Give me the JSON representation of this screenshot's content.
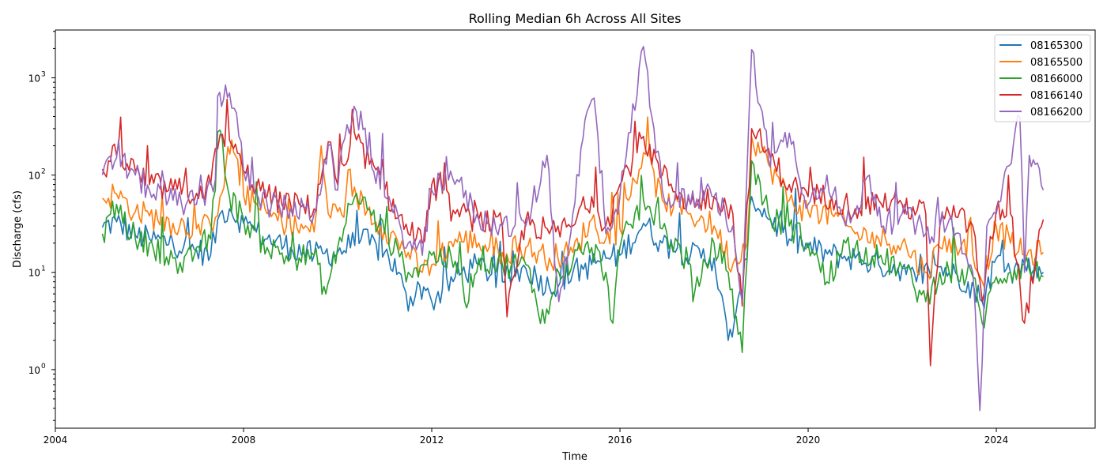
{
  "chart_data": {
    "type": "line",
    "title": "Rolling Median 6h Across All Sites",
    "xlabel": "Time",
    "ylabel": "Discharge (cfs)",
    "xscale": "time",
    "yscale": "log",
    "xlim": [
      2004.0,
      2026.1
    ],
    "ylim": [
      0.25,
      3100
    ],
    "xticks": [
      2004,
      2008,
      2012,
      2016,
      2020,
      2024
    ],
    "xtick_labels": [
      "2004",
      "2008",
      "2012",
      "2016",
      "2020",
      "2024"
    ],
    "yticks": [
      1,
      10,
      100,
      1000
    ],
    "ytick_labels": [
      [
        "10",
        "0"
      ],
      [
        "10",
        "1"
      ],
      [
        "10",
        "2"
      ],
      [
        "10",
        "3"
      ]
    ],
    "grid": false,
    "legend_position": "top-right",
    "series": [
      {
        "name": "08165300",
        "color": "#1f77b4",
        "points": [
          [
            2005.0,
            29
          ],
          [
            2005.3,
            33
          ],
          [
            2005.7,
            24
          ],
          [
            2006.0,
            22
          ],
          [
            2006.5,
            20
          ],
          [
            2007.0,
            17
          ],
          [
            2007.3,
            15
          ],
          [
            2007.5,
            40
          ],
          [
            2007.7,
            45
          ],
          [
            2008.0,
            32
          ],
          [
            2008.5,
            22
          ],
          [
            2009.0,
            18
          ],
          [
            2009.5,
            15
          ],
          [
            2010.0,
            16
          ],
          [
            2010.5,
            22
          ],
          [
            2011.0,
            16
          ],
          [
            2011.3,
            10
          ],
          [
            2011.5,
            4
          ],
          [
            2011.7,
            8
          ],
          [
            2012.0,
            5
          ],
          [
            2012.5,
            9
          ],
          [
            2013.0,
            12
          ],
          [
            2013.5,
            8
          ],
          [
            2014.0,
            11
          ],
          [
            2014.5,
            7
          ],
          [
            2015.0,
            10
          ],
          [
            2015.4,
            12
          ],
          [
            2015.7,
            14
          ],
          [
            2016.0,
            15
          ],
          [
            2016.5,
            32
          ],
          [
            2016.9,
            20
          ],
          [
            2017.5,
            15
          ],
          [
            2018.0,
            14
          ],
          [
            2018.3,
            2
          ],
          [
            2018.6,
            6
          ],
          [
            2018.8,
            60
          ],
          [
            2019.2,
            35
          ],
          [
            2019.6,
            22
          ],
          [
            2020.0,
            18
          ],
          [
            2020.5,
            15
          ],
          [
            2021.0,
            14
          ],
          [
            2021.5,
            12
          ],
          [
            2022.0,
            11
          ],
          [
            2022.3,
            8
          ],
          [
            2022.7,
            12
          ],
          [
            2023.0,
            10
          ],
          [
            2023.4,
            8
          ],
          [
            2023.7,
            5
          ],
          [
            2024.0,
            14
          ],
          [
            2024.3,
            10
          ],
          [
            2024.6,
            12
          ],
          [
            2025.0,
            10
          ]
        ]
      },
      {
        "name": "08165500",
        "color": "#ff7f0e",
        "points": [
          [
            2005.0,
            58
          ],
          [
            2005.3,
            64
          ],
          [
            2005.7,
            42
          ],
          [
            2006.0,
            38
          ],
          [
            2006.5,
            32
          ],
          [
            2007.0,
            28
          ],
          [
            2007.3,
            30
          ],
          [
            2007.5,
            60
          ],
          [
            2007.75,
            230
          ],
          [
            2008.0,
            62
          ],
          [
            2008.5,
            40
          ],
          [
            2009.0,
            30
          ],
          [
            2009.5,
            26
          ],
          [
            2009.65,
            200
          ],
          [
            2009.8,
            40
          ],
          [
            2010.0,
            42
          ],
          [
            2010.4,
            60
          ],
          [
            2011.0,
            28
          ],
          [
            2011.5,
            16
          ],
          [
            2011.8,
            10
          ],
          [
            2012.0,
            12
          ],
          [
            2012.5,
            22
          ],
          [
            2013.0,
            20
          ],
          [
            2013.5,
            16
          ],
          [
            2014.0,
            18
          ],
          [
            2014.5,
            14
          ],
          [
            2015.0,
            16
          ],
          [
            2015.4,
            35
          ],
          [
            2015.7,
            22
          ],
          [
            2016.0,
            28
          ],
          [
            2016.5,
            170
          ],
          [
            2016.9,
            55
          ],
          [
            2017.5,
            40
          ],
          [
            2018.0,
            30
          ],
          [
            2018.4,
            12
          ],
          [
            2018.7,
            20
          ],
          [
            2018.8,
            250
          ],
          [
            2019.2,
            120
          ],
          [
            2019.6,
            55
          ],
          [
            2020.0,
            42
          ],
          [
            2020.5,
            40
          ],
          [
            2021.0,
            25
          ],
          [
            2021.5,
            22
          ],
          [
            2022.0,
            20
          ],
          [
            2022.5,
            10
          ],
          [
            2022.8,
            18
          ],
          [
            2023.0,
            22
          ],
          [
            2023.5,
            15
          ],
          [
            2023.7,
            8
          ],
          [
            2024.0,
            30
          ],
          [
            2024.3,
            20
          ],
          [
            2024.6,
            15
          ],
          [
            2025.0,
            16
          ]
        ]
      },
      {
        "name": "08166000",
        "color": "#2ca02c",
        "points": [
          [
            2005.0,
            25
          ],
          [
            2005.3,
            50
          ],
          [
            2005.7,
            22
          ],
          [
            2006.0,
            20
          ],
          [
            2006.5,
            14
          ],
          [
            2006.7,
            10
          ],
          [
            2007.0,
            18
          ],
          [
            2007.3,
            22
          ],
          [
            2007.5,
            290
          ],
          [
            2007.7,
            60
          ],
          [
            2008.0,
            35
          ],
          [
            2008.5,
            18
          ],
          [
            2009.0,
            14
          ],
          [
            2009.5,
            15
          ],
          [
            2009.75,
            6
          ],
          [
            2010.0,
            18
          ],
          [
            2010.4,
            65
          ],
          [
            2011.0,
            25
          ],
          [
            2011.5,
            10
          ],
          [
            2011.8,
            12
          ],
          [
            2012.0,
            15
          ],
          [
            2012.5,
            13
          ],
          [
            2012.7,
            5
          ],
          [
            2013.0,
            14
          ],
          [
            2013.5,
            12
          ],
          [
            2014.0,
            12
          ],
          [
            2014.4,
            3
          ],
          [
            2014.7,
            10
          ],
          [
            2015.0,
            13
          ],
          [
            2015.4,
            18
          ],
          [
            2015.7,
            10
          ],
          [
            2015.85,
            3
          ],
          [
            2016.0,
            18
          ],
          [
            2016.5,
            55
          ],
          [
            2016.9,
            28
          ],
          [
            2017.5,
            12
          ],
          [
            2017.55,
            5
          ],
          [
            2018.0,
            20
          ],
          [
            2018.3,
            10
          ],
          [
            2018.6,
            1.5
          ],
          [
            2018.8,
            140
          ],
          [
            2019.2,
            35
          ],
          [
            2019.6,
            30
          ],
          [
            2020.0,
            20
          ],
          [
            2020.4,
            8
          ],
          [
            2020.8,
            20
          ],
          [
            2021.0,
            18
          ],
          [
            2021.5,
            14
          ],
          [
            2022.0,
            11
          ],
          [
            2022.5,
            5
          ],
          [
            2022.8,
            10
          ],
          [
            2023.0,
            10
          ],
          [
            2023.5,
            9
          ],
          [
            2023.7,
            3
          ],
          [
            2024.0,
            9
          ],
          [
            2024.3,
            10
          ],
          [
            2024.6,
            12
          ],
          [
            2025.0,
            9
          ]
        ]
      },
      {
        "name": "08166140",
        "color": "#d62728",
        "points": [
          [
            2005.0,
            115
          ],
          [
            2005.3,
            160
          ],
          [
            2005.7,
            110
          ],
          [
            2006.0,
            80
          ],
          [
            2006.5,
            70
          ],
          [
            2007.0,
            65
          ],
          [
            2007.3,
            80
          ],
          [
            2007.5,
            260
          ],
          [
            2007.7,
            230
          ],
          [
            2008.0,
            110
          ],
          [
            2008.5,
            60
          ],
          [
            2009.0,
            50
          ],
          [
            2009.5,
            45
          ],
          [
            2009.8,
            220
          ],
          [
            2010.0,
            80
          ],
          [
            2010.4,
            230
          ],
          [
            2011.0,
            70
          ],
          [
            2011.5,
            25
          ],
          [
            2011.8,
            20
          ],
          [
            2012.0,
            80
          ],
          [
            2012.5,
            40
          ],
          [
            2013.0,
            35
          ],
          [
            2013.5,
            30
          ],
          [
            2013.6,
            3.5
          ],
          [
            2014.0,
            35
          ],
          [
            2014.5,
            25
          ],
          [
            2015.0,
            30
          ],
          [
            2015.4,
            60
          ],
          [
            2015.7,
            30
          ],
          [
            2016.0,
            80
          ],
          [
            2016.5,
            250
          ],
          [
            2016.9,
            100
          ],
          [
            2017.5,
            50
          ],
          [
            2018.0,
            60
          ],
          [
            2018.4,
            40
          ],
          [
            2018.6,
            4.5
          ],
          [
            2018.8,
            300
          ],
          [
            2019.2,
            150
          ],
          [
            2019.6,
            80
          ],
          [
            2020.0,
            60
          ],
          [
            2020.5,
            60
          ],
          [
            2021.0,
            45
          ],
          [
            2021.5,
            55
          ],
          [
            2022.0,
            50
          ],
          [
            2022.5,
            40
          ],
          [
            2022.6,
            1.1
          ],
          [
            2022.8,
            30
          ],
          [
            2023.0,
            40
          ],
          [
            2023.5,
            30
          ],
          [
            2023.7,
            5
          ],
          [
            2024.0,
            45
          ],
          [
            2024.3,
            40
          ],
          [
            2024.6,
            3
          ],
          [
            2025.0,
            35
          ]
        ]
      },
      {
        "name": "08166200",
        "color": "#9467bd",
        "points": [
          [
            2005.0,
            100
          ],
          [
            2005.3,
            150
          ],
          [
            2005.7,
            100
          ],
          [
            2006.0,
            70
          ],
          [
            2006.5,
            55
          ],
          [
            2007.0,
            50
          ],
          [
            2007.4,
            90
          ],
          [
            2007.45,
            650
          ],
          [
            2007.7,
            700
          ],
          [
            2007.9,
            250
          ],
          [
            2008.0,
            110
          ],
          [
            2008.5,
            50
          ],
          [
            2009.0,
            45
          ],
          [
            2009.5,
            40
          ],
          [
            2009.8,
            200
          ],
          [
            2010.0,
            70
          ],
          [
            2010.2,
            330
          ],
          [
            2010.4,
            450
          ],
          [
            2011.0,
            60
          ],
          [
            2011.5,
            20
          ],
          [
            2011.8,
            15
          ],
          [
            2012.0,
            70
          ],
          [
            2012.4,
            110
          ],
          [
            2013.0,
            35
          ],
          [
            2013.5,
            30
          ],
          [
            2014.0,
            30
          ],
          [
            2014.45,
            160
          ],
          [
            2014.7,
            5
          ],
          [
            2015.0,
            40
          ],
          [
            2015.3,
            450
          ],
          [
            2015.45,
            620
          ],
          [
            2015.7,
            25
          ],
          [
            2016.0,
            60
          ],
          [
            2016.5,
            2100
          ],
          [
            2016.9,
            70
          ],
          [
            2017.5,
            50
          ],
          [
            2018.0,
            60
          ],
          [
            2018.4,
            30
          ],
          [
            2018.6,
            5
          ],
          [
            2018.8,
            1950
          ],
          [
            2019.2,
            120
          ],
          [
            2019.6,
            270
          ],
          [
            2020.0,
            50
          ],
          [
            2020.4,
            100
          ],
          [
            2020.8,
            30
          ],
          [
            2021.0,
            40
          ],
          [
            2021.3,
            100
          ],
          [
            2021.6,
            30
          ],
          [
            2022.0,
            40
          ],
          [
            2022.5,
            25
          ],
          [
            2022.8,
            30
          ],
          [
            2023.0,
            35
          ],
          [
            2023.5,
            10
          ],
          [
            2023.65,
            0.38
          ],
          [
            2023.8,
            30
          ],
          [
            2024.0,
            40
          ],
          [
            2024.5,
            390
          ],
          [
            2024.6,
            10
          ],
          [
            2024.7,
            160
          ],
          [
            2025.0,
            70
          ]
        ]
      }
    ]
  }
}
